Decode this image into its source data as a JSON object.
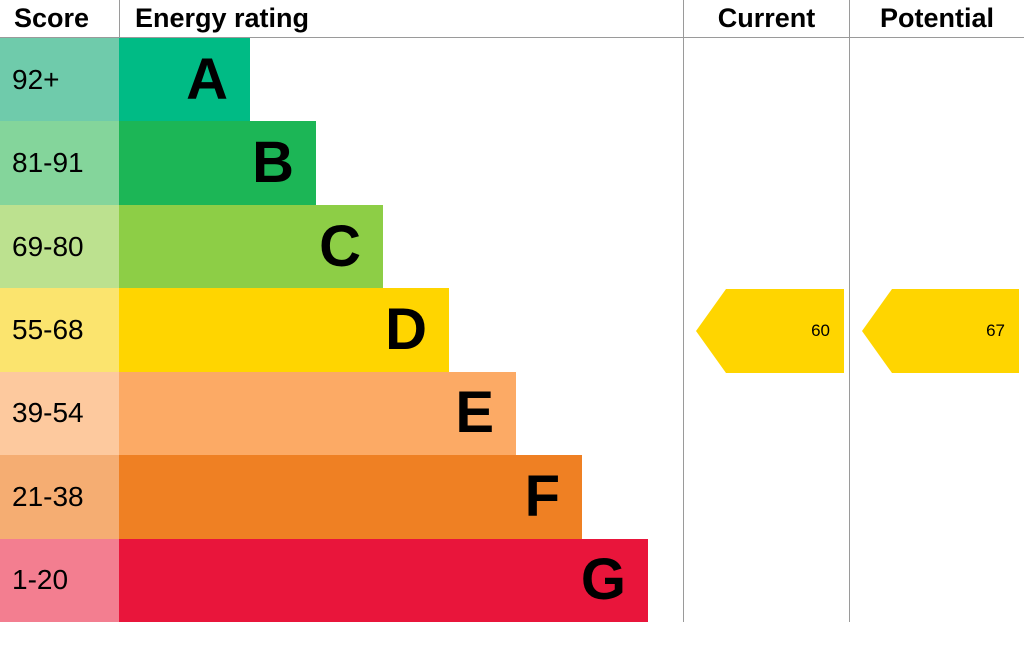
{
  "header": {
    "score": "Score",
    "energy_rating": "Energy rating",
    "current": "Current",
    "potential": "Potential"
  },
  "bands": [
    {
      "letter": "A",
      "score": "92+",
      "bar_color": "#00bb85",
      "score_color": "#6fcbab"
    },
    {
      "letter": "B",
      "score": "81-91",
      "bar_color": "#1cb656",
      "score_color": "#84d59b"
    },
    {
      "letter": "C",
      "score": "69-80",
      "bar_color": "#8dce46",
      "score_color": "#bce18f"
    },
    {
      "letter": "D",
      "score": "55-68",
      "bar_color": "#ffd500",
      "score_color": "#fbe46e"
    },
    {
      "letter": "E",
      "score": "39-54",
      "bar_color": "#fcaa65",
      "score_color": "#fdc99e"
    },
    {
      "letter": "F",
      "score": "21-38",
      "bar_color": "#ef8023",
      "score_color": "#f5ad72"
    },
    {
      "letter": "G",
      "score": "1-20",
      "bar_color": "#e9153b",
      "score_color": "#f37e90"
    }
  ],
  "current": {
    "label": "60",
    "arrow_color": "#ffd500"
  },
  "potential": {
    "label": "67",
    "arrow_color": "#ffd500"
  },
  "colors": {
    "border": "#9a9a9a"
  },
  "chart_data": {
    "type": "bar",
    "title": "Energy rating",
    "categories": [
      "A",
      "B",
      "C",
      "D",
      "E",
      "F",
      "G"
    ],
    "score_ranges": [
      "92+",
      "81-91",
      "69-80",
      "55-68",
      "39-54",
      "21-38",
      "1-20"
    ],
    "band_colors": [
      "#00bb85",
      "#1cb656",
      "#8dce46",
      "#ffd500",
      "#fcaa65",
      "#ef8023",
      "#e9153b"
    ],
    "current": 60,
    "potential": 67,
    "current_band": "D",
    "potential_band": "D",
    "legend_position": "none",
    "grid": false
  }
}
